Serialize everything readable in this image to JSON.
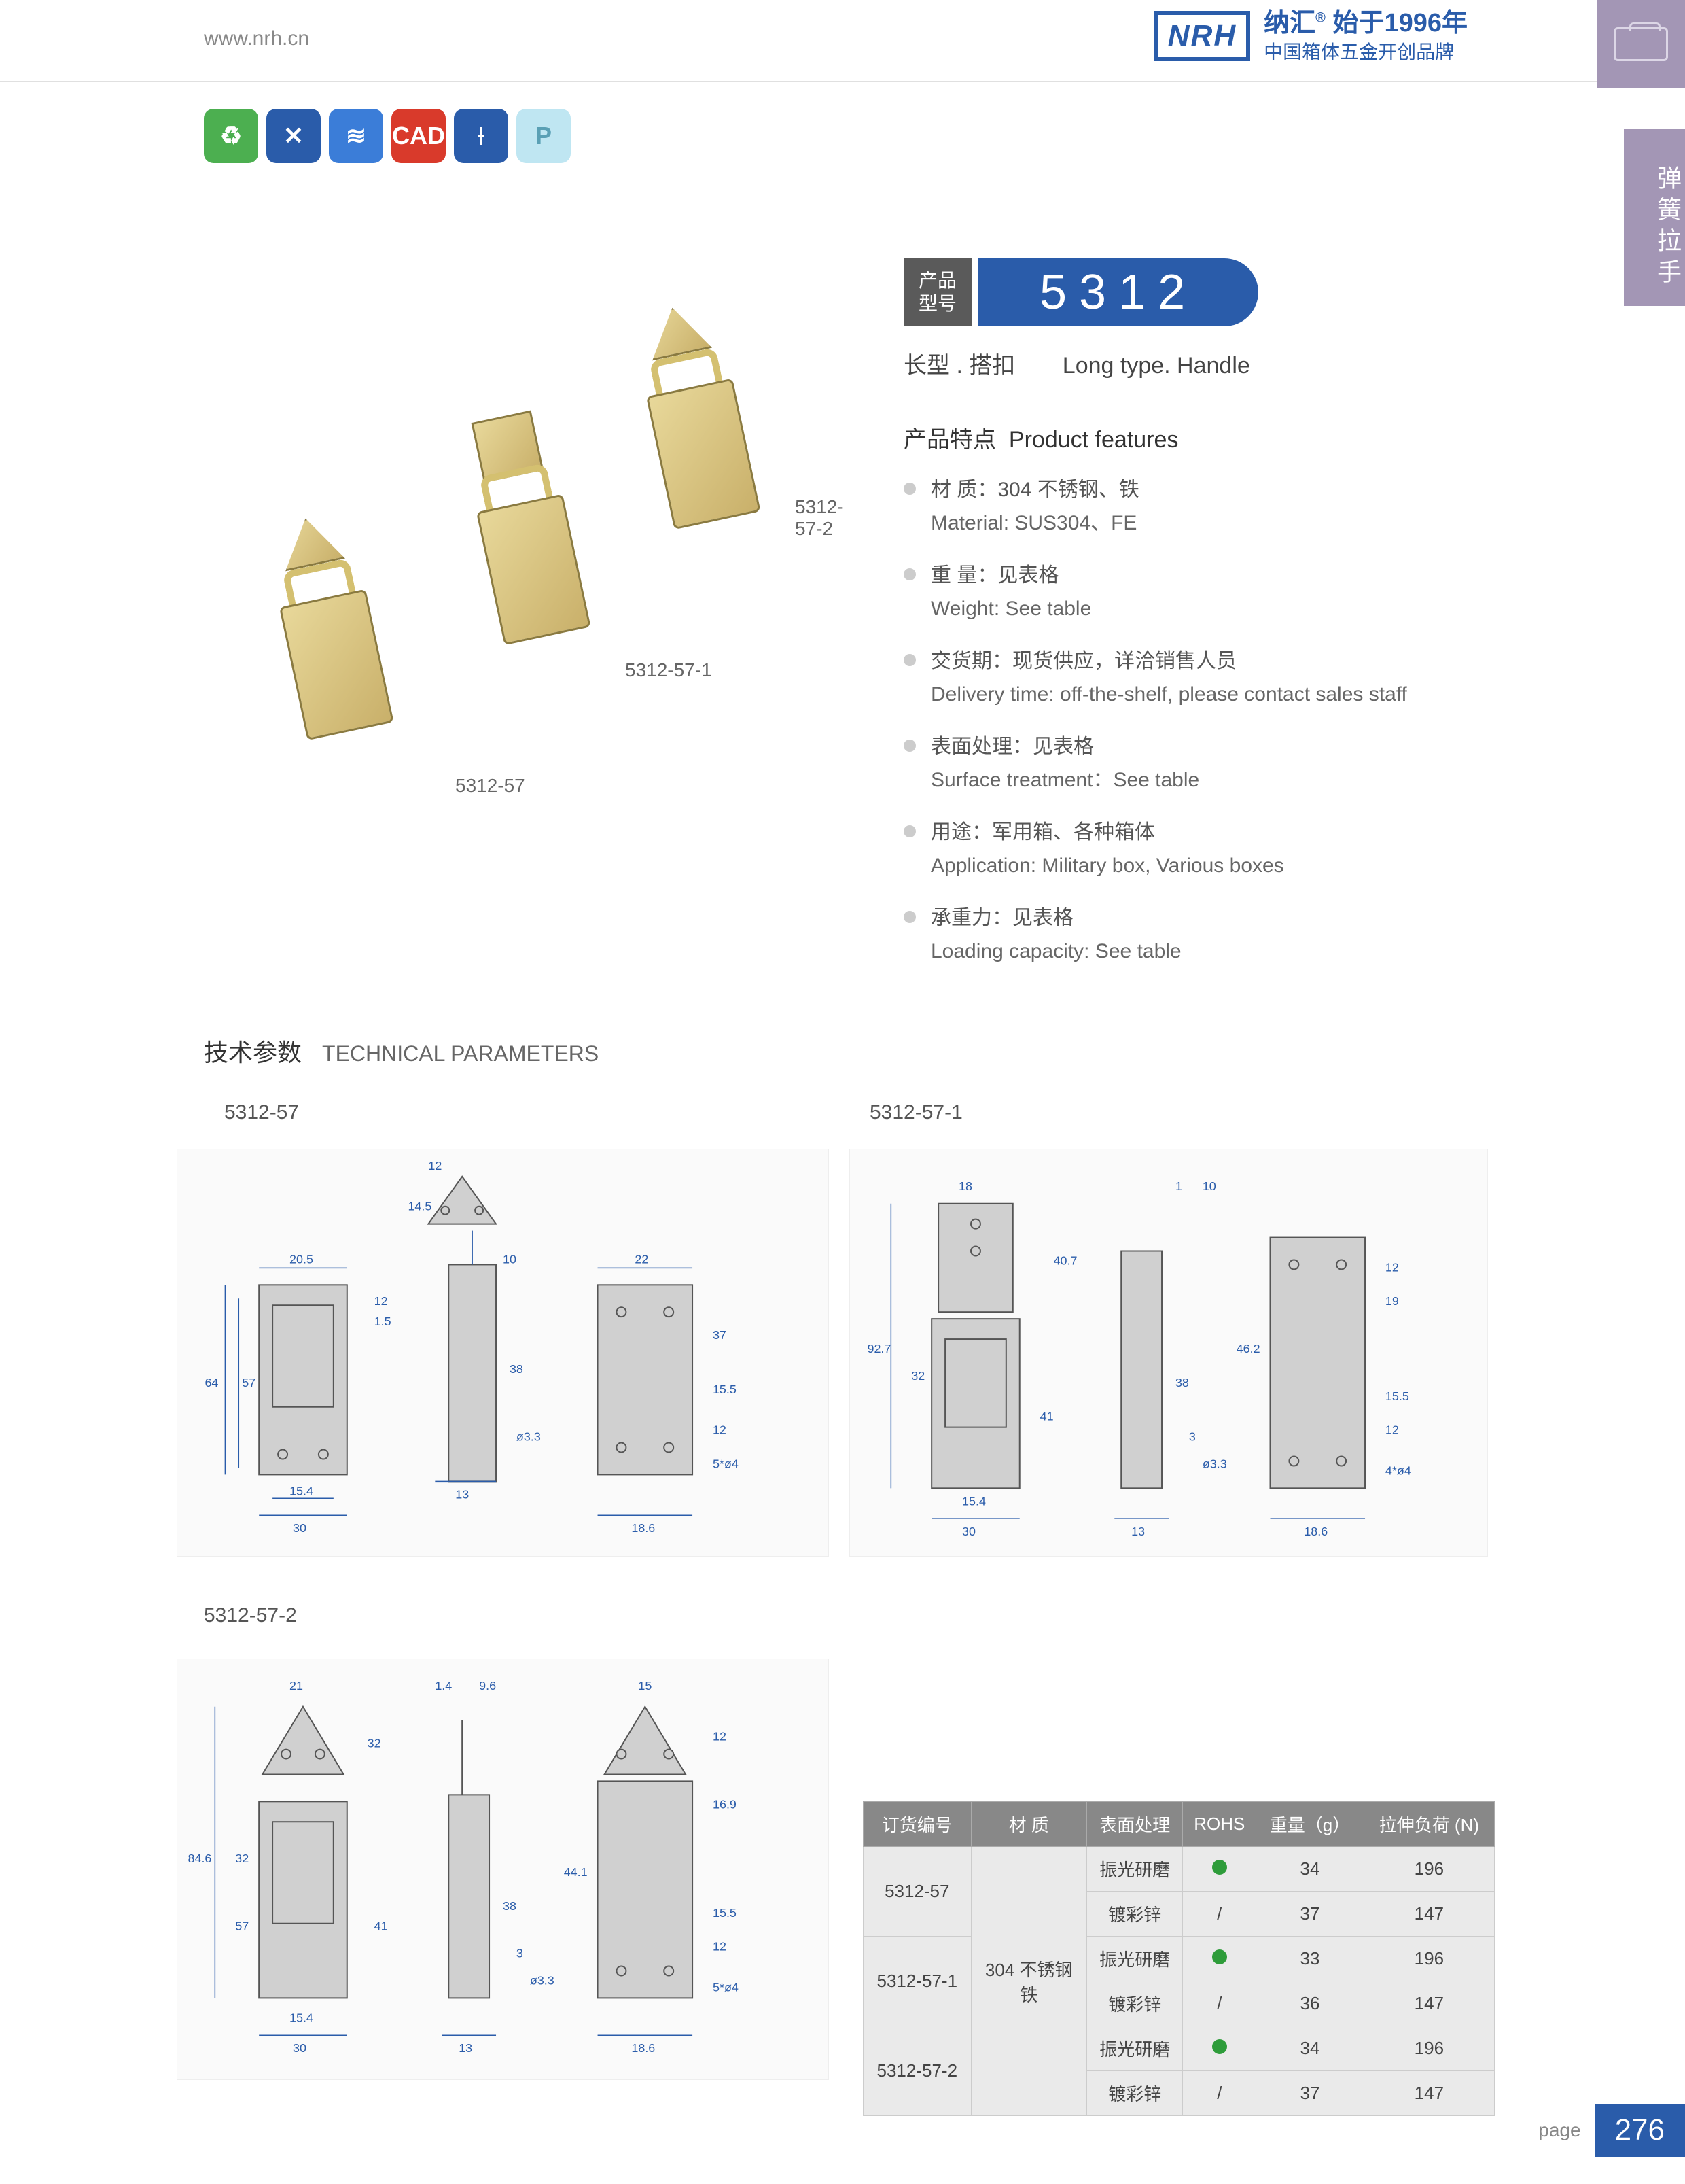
{
  "header": {
    "url": "www.nrh.cn",
    "logo": "NRH",
    "brand_cn": "纳汇",
    "brand_year": "始于1996年",
    "brand_tag": "中国箱体五金开创品牌"
  },
  "side_tab": "弹簧拉手",
  "icons": [
    "leaf-icon",
    "tools-icon",
    "spring-icon",
    "cad-icon",
    "screw-icon",
    "p-icon"
  ],
  "icon_text": [
    "",
    "",
    "",
    "CAD",
    "",
    "P"
  ],
  "product_labels": {
    "a": "5312-57-2",
    "b": "5312-57-1",
    "c": "5312-57"
  },
  "model": {
    "label_cn1": "产品",
    "label_cn2": "型号",
    "number": "5312"
  },
  "subtitle": {
    "cn": "长型 . 搭扣",
    "en": "Long type. Handle"
  },
  "features_title_cn": "产品特点",
  "features_title_en": "Product features",
  "features": [
    {
      "cn": "材  质：304 不锈钢、铁",
      "en": "Material: SUS304、FE"
    },
    {
      "cn": "重  量：见表格",
      "en": "Weight: See table"
    },
    {
      "cn": "交货期：现货供应，详洽销售人员",
      "en": "Delivery time: off-the-shelf, please contact sales staff"
    },
    {
      "cn": "表面处理：见表格",
      "en": "Surface treatment：See table"
    },
    {
      "cn": "用途：军用箱、各种箱体",
      "en": "Application: Military box, Various boxes"
    },
    {
      "cn": "承重力：见表格",
      "en": "Loading capacity: See table"
    }
  ],
  "tech_title_cn": "技术参数",
  "tech_title_en": "TECHNICAL PARAMETERS",
  "drawings": {
    "d1": "5312-57",
    "d2": "5312-57-1",
    "d3": "5312-57-2"
  },
  "dimensions": {
    "d1": [
      "12",
      "14.5",
      "20.5",
      "22",
      "10",
      "12",
      "1.5",
      "64",
      "57",
      "38",
      "37",
      "15.5",
      "12",
      "ø3.3",
      "5*ø4",
      "15.4",
      "30",
      "13",
      "18.6"
    ],
    "d2": [
      "18",
      "1",
      "10",
      "12",
      "40.7",
      "19",
      "92.7",
      "32",
      "41",
      "38",
      "3",
      "46.2",
      "15.5",
      "12",
      "ø3.3",
      "4*ø4",
      "15.4",
      "30",
      "13",
      "18.6"
    ],
    "d3": [
      "21",
      "1.4",
      "9.6",
      "15",
      "32",
      "32",
      "12",
      "16.9",
      "84.6",
      "32",
      "57",
      "41",
      "38",
      "3",
      "44.1",
      "15.5",
      "12",
      "ø3.3",
      "5*ø4",
      "15.4",
      "30",
      "13",
      "18.6"
    ]
  },
  "table": {
    "headers": [
      "订货编号",
      "材    质",
      "表面处理",
      "ROHS",
      "重量（g）",
      "拉伸负荷 (N)"
    ],
    "material": "304 不锈钢\n铁",
    "rows": [
      {
        "code": "5312-57",
        "st": "振光研磨",
        "rohs": "dot",
        "w": "34",
        "load": "196"
      },
      {
        "code": "",
        "st": "镀彩锌",
        "rohs": "/",
        "w": "37",
        "load": "147"
      },
      {
        "code": "5312-57-1",
        "st": "振光研磨",
        "rohs": "dot",
        "w": "33",
        "load": "196"
      },
      {
        "code": "",
        "st": "镀彩锌",
        "rohs": "/",
        "w": "36",
        "load": "147"
      },
      {
        "code": "5312-57-2",
        "st": "振光研磨",
        "rohs": "dot",
        "w": "34",
        "load": "196"
      },
      {
        "code": "",
        "st": "镀彩锌",
        "rohs": "/",
        "w": "37",
        "load": "147"
      }
    ]
  },
  "page": {
    "label": "page",
    "num": "276"
  },
  "colors": {
    "brand": "#2a5caa",
    "side": "#a396b5",
    "th_bg": "#888888",
    "td_bg": "#eaeaea",
    "rohs": "#2e9c3a"
  }
}
